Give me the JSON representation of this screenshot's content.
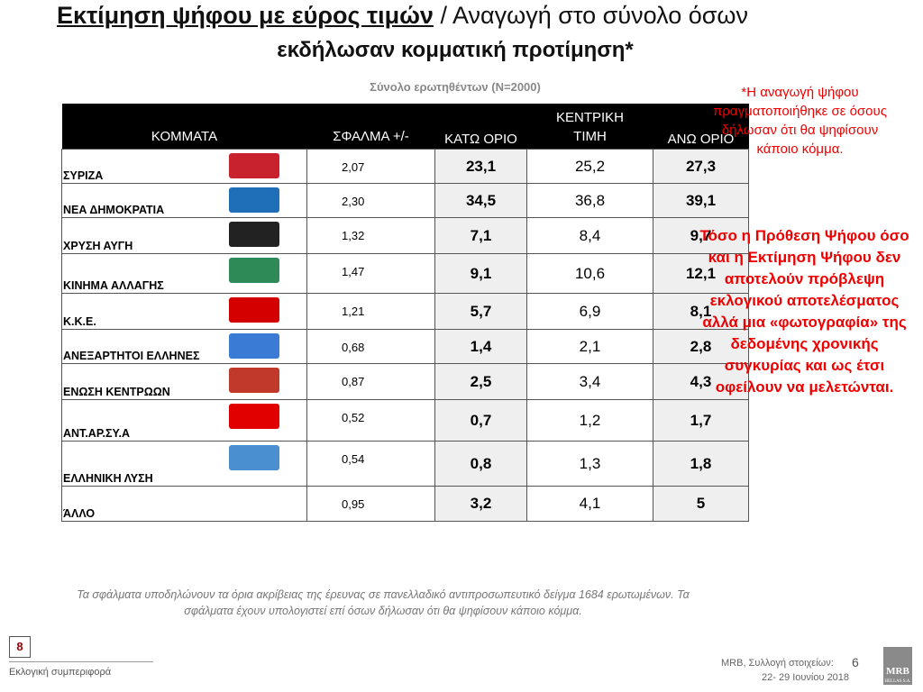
{
  "header": {
    "title_underlined": "Εκτίμηση ψήφου με εύρος τιμών",
    "title_rest": "/ Αναγωγή στο σύνολο όσων",
    "title_line2": "εκδήλωσαν κομματική προτίμηση*",
    "subtitle": "Σύνολο ερωτηθέντων (N=2000)"
  },
  "table": {
    "columns": [
      "ΚΟΜΜΑΤΑ",
      "ΣΦΑΛΜΑ +/-",
      "ΚΑΤΩ ΟΡΙΟ",
      "ΚΕΝΤΡΙΚΗ ΤΙΜΗ",
      "ΑΝΩ ΟΡΙΟ"
    ],
    "rows": [
      [
        "ΣΥΡΙΖΑ",
        "2,07",
        "23,1",
        "25,2",
        "27,3"
      ],
      [
        "ΝΕΑ ΔΗΜΟΚΡΑΤΙΑ",
        "2,30",
        "34,5",
        "36,8",
        "39,1"
      ],
      [
        "ΧΡΥΣΗ ΑΥΓΗ",
        "1,32",
        "7,1",
        "8,4",
        "9,7"
      ],
      [
        "ΚΙΝΗΜΑ ΑΛΛΑΓΗΣ",
        "1,47",
        "9,1",
        "10,6",
        "12,1"
      ],
      [
        "Κ.Κ.Ε.",
        "1,21",
        "5,7",
        "6,9",
        "8,1"
      ],
      [
        "ΑΝΕΞΑΡΤΗΤΟΙ ΕΛΛΗΝΕΣ",
        "0,68",
        "1,4",
        "2,1",
        "2,8"
      ],
      [
        "ΕΝΩΣΗ ΚΕΝΤΡΩΩΝ",
        "0,87",
        "2,5",
        "3,4",
        "4,3"
      ],
      [
        "ΑΝΤ.ΑΡ.ΣΥ.Α",
        "0,52",
        "0,7",
        "1,2",
        "1,7"
      ],
      [
        "ΕΛΛΗΝΙΚΗ ΛΥΣΗ",
        "0,54",
        "0,8",
        "1,3",
        "1,8"
      ],
      [
        "ΆΛΛΟ",
        "0,95",
        "3,2",
        "4,1",
        "5"
      ]
    ]
  },
  "notes": {
    "reduction": "*Η αναγωγή ψήφου πραγματοποιήθηκε σε όσους δήλωσαν ότι θα ψηφίσουν κάποιο κόμμα.",
    "disclaimer": "Τόσο η Πρόθεση Ψήφου όσο και η Εκτίμηση Ψήφου δεν αποτελούν πρόβλεψη εκλογικού αποτελέσματος αλλά μια «φωτογραφία» της δεδομένης χρονικής συγκυρίας και ως έτσι οφείλουν να μελετώνται."
  },
  "footnote": "Τα σφάλματα υποδηλώνουν τα όρια ακρίβειας της έρευνας σε πανελλαδικό αντιπροσωπευτικό δείγμα 1684 ερωτωμένων. Τα σφάλματα έχουν υπολογιστεί επί όσων δήλωσαν ότι θα ψηφίσουν κάποιο κόμμα.",
  "footer": {
    "page_number": "8",
    "section": "Εκλογική συμπεριφορά",
    "source": "MRB, Συλλογή στοιχείων:",
    "slide_number": "6",
    "dates": "22- 29 Ιουνίου 2018",
    "logo": "MRB",
    "logo_sub": "HELLAS S.A."
  }
}
